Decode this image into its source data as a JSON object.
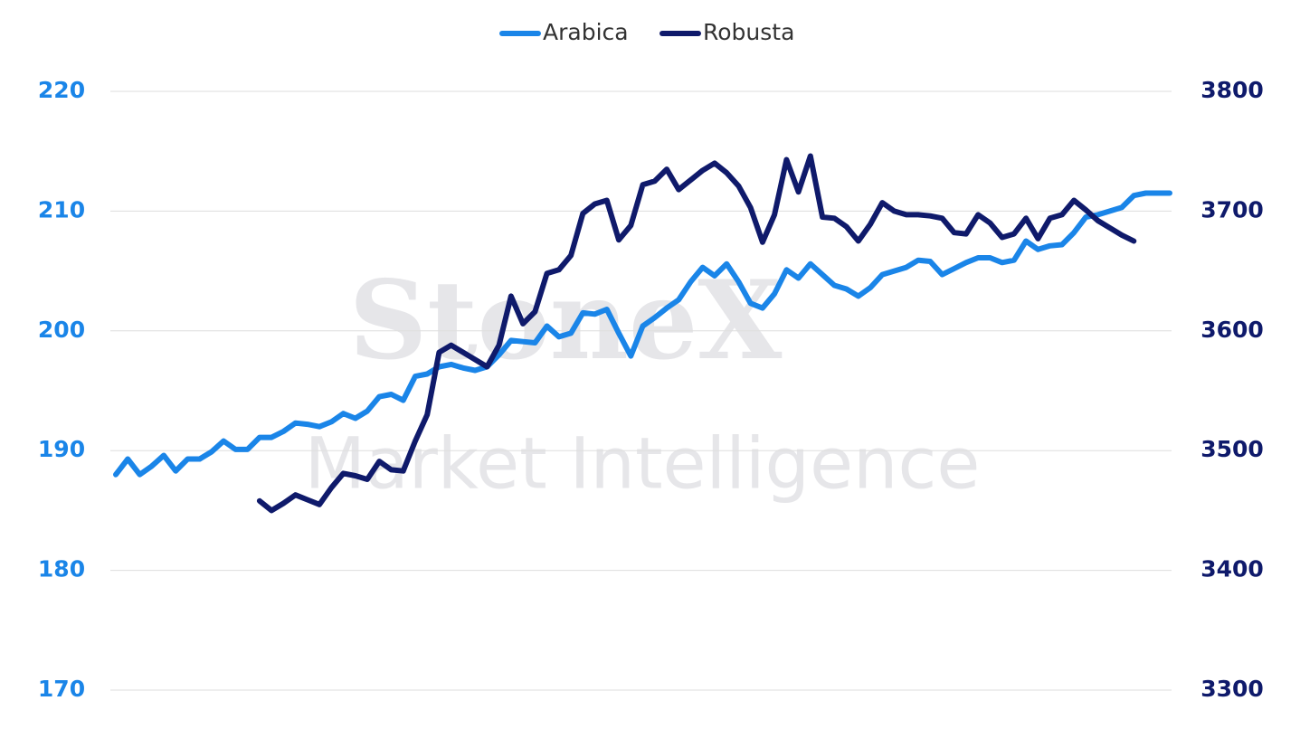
{
  "chart_data": {
    "type": "line",
    "watermark": [
      "StoneX",
      "Market Intelligence"
    ],
    "categories": [
      null,
      null,
      null,
      null,
      null,
      null,
      null,
      null,
      null,
      null,
      null,
      null,
      null,
      null,
      null,
      null,
      null,
      null,
      null,
      null,
      null,
      null,
      null,
      null,
      null,
      null,
      null,
      null,
      null,
      null,
      null,
      null,
      null,
      null,
      null,
      null,
      null,
      null,
      null,
      null,
      null,
      null,
      null,
      null,
      null,
      null,
      null,
      null,
      null,
      null,
      null,
      null,
      null,
      null,
      null,
      null,
      null,
      null,
      null,
      null,
      null,
      null,
      null,
      null,
      null,
      null,
      null,
      null,
      null,
      null,
      null,
      null,
      null,
      null,
      null,
      null,
      null,
      null,
      null,
      null,
      null,
      null,
      null,
      null,
      null,
      null,
      null,
      null,
      null
    ],
    "series": [
      {
        "name": "Arabica",
        "color": "#1a85e8",
        "values": [
          188.0,
          189.3,
          188.0,
          188.7,
          189.6,
          188.3,
          189.3,
          189.3,
          189.9,
          190.8,
          190.1,
          190.1,
          191.1,
          191.1,
          191.6,
          192.3,
          192.2,
          192.0,
          192.4,
          193.1,
          192.7,
          193.3,
          194.5,
          194.7,
          194.2,
          196.2,
          196.4,
          197.0,
          197.2,
          196.9,
          196.7,
          197.0,
          198.0,
          199.2,
          199.1,
          199.0,
          200.4,
          199.5,
          199.8,
          201.5,
          201.4,
          201.8,
          199.8,
          197.9,
          200.4,
          201.1,
          201.9,
          202.6,
          204.1,
          205.3,
          204.6,
          205.6,
          204.1,
          202.3,
          201.9,
          203.1,
          205.1,
          204.4,
          205.6,
          204.7,
          203.8,
          203.5,
          202.9,
          203.6,
          204.7,
          205.0,
          205.3,
          205.9,
          205.8,
          204.7,
          205.2,
          205.7,
          206.1,
          206.1,
          205.7,
          205.9,
          207.5,
          206.8,
          207.1,
          207.2,
          208.2,
          209.5,
          209.7,
          210.0,
          210.3,
          211.3,
          211.5,
          211.5,
          211.5
        ]
      },
      {
        "name": "Robusta",
        "color": "#0f1a6b",
        "axis": "y2",
        "values": [
          null,
          null,
          null,
          null,
          null,
          null,
          null,
          null,
          null,
          null,
          null,
          null,
          3458,
          3450,
          3456,
          3463,
          3459,
          3455,
          3469,
          3481,
          3479,
          3476,
          3491,
          3484,
          3483,
          3508,
          3530,
          3582,
          3588,
          3582,
          3576,
          3570,
          3588,
          3629,
          3606,
          3616,
          3648,
          3651,
          3663,
          3698,
          3706,
          3709,
          3676,
          3688,
          3722,
          3725,
          3735,
          3718,
          3726,
          3734,
          3740,
          3732,
          3721,
          3703,
          3674,
          3697,
          3743,
          3716,
          3746,
          3695,
          3694,
          3687,
          3675,
          3689,
          3707,
          3700,
          3697,
          3697,
          3696,
          3694,
          3682,
          3681,
          3697,
          3690,
          3678,
          3681,
          3694,
          3677,
          3694,
          3697,
          3709,
          3701,
          3692,
          3686,
          3680,
          3675,
          null,
          null,
          null
        ]
      }
    ],
    "ylim": [
      170,
      220
    ],
    "yticks": [
      170,
      180,
      190,
      200,
      210,
      220
    ],
    "y2lim": [
      3300,
      3800
    ],
    "y2ticks": [
      3300,
      3400,
      3500,
      3600,
      3700,
      3800
    ],
    "grid": true,
    "legend": "top"
  }
}
